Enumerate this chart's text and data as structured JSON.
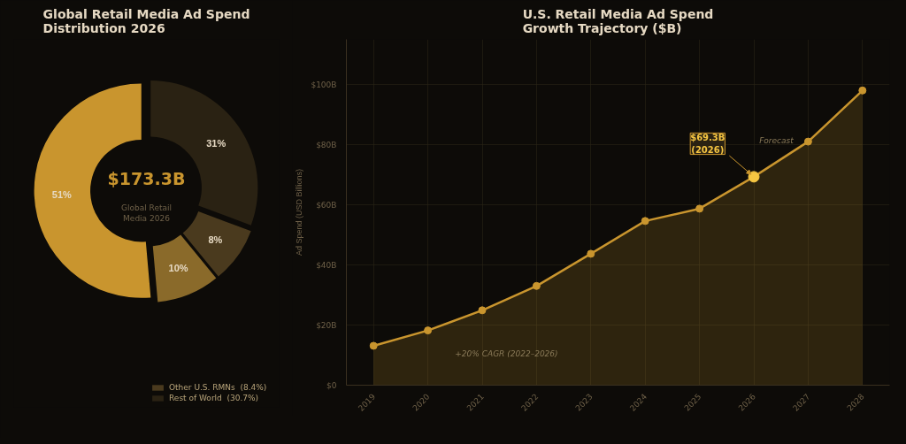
{
  "chart_data": [
    {
      "type": "donut",
      "title": "Global Retail Media Ad Spend\nDistribution 2026",
      "categories": [
        null,
        null,
        "Other U.S. RMNs  (8.4%)",
        "Rest of World  (30.7%)"
      ],
      "values": [
        51.4,
        9.5,
        8.4,
        30.7
      ],
      "colors": [
        "#c9952e",
        "#8a6a2a",
        "#4a3a1e",
        "#2a2213"
      ],
      "value_labels": [
        "51%",
        "10%",
        "8%",
        "31%"
      ],
      "legend": "bottom",
      "annotations": [
        "$173.3B",
        "Global Retail\nMedia 2026"
      ]
    },
    {
      "type": "area",
      "title": "U.S. Retail Media Ad Spend\nGrowth Trajectory ($B)",
      "ylabel": "Ad Spend (USD Billions)",
      "categories": [
        "2019",
        "2020",
        "2021",
        "2022",
        "2023",
        "2024",
        "2025",
        "2026",
        "2027",
        "2028"
      ],
      "series": [
        {
          "color": "#c9952e",
          "values": [
            13.1,
            18.2,
            24.9,
            33.0,
            43.7,
            54.6,
            58.7,
            69.3,
            81.0,
            98.0
          ]
        }
      ],
      "ylim": [
        0,
        115
      ],
      "yticks": [
        {
          "value": 0,
          "label": "$0"
        },
        {
          "value": 20,
          "label": "$20B"
        },
        {
          "value": 40,
          "label": "$40B"
        },
        {
          "value": 60,
          "label": "$60B"
        },
        {
          "value": 80,
          "label": "$80B"
        },
        {
          "value": 100,
          "label": "$100B"
        }
      ],
      "grid": true,
      "marker": "circle",
      "line_style": "solid",
      "annotations": [
        {
          "text": "$69.3B\n(2026)",
          "x": "2026",
          "y": 69.3
        },
        "+20% CAGR (2022–2026)",
        "Forecast"
      ]
    }
  ]
}
